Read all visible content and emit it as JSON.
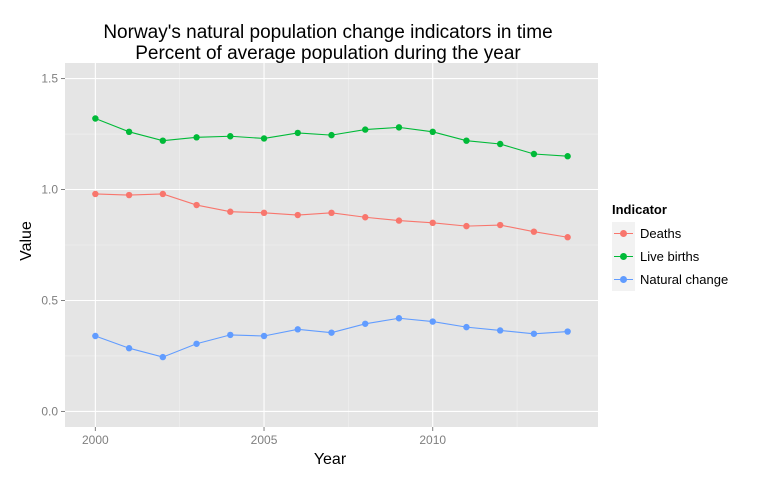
{
  "chart_data": {
    "type": "line",
    "title": "Norway's natural population change indicators in time",
    "subtitle": "Percent of average population during the year",
    "xlabel": "Year",
    "ylabel": "Value",
    "x": [
      2000,
      2001,
      2002,
      2003,
      2004,
      2005,
      2006,
      2007,
      2008,
      2009,
      2010,
      2011,
      2012,
      2013,
      2014
    ],
    "xlim": [
      1999.1,
      2014.9
    ],
    "ylim": [
      -0.07,
      1.57
    ],
    "xticks": [
      2000,
      2005,
      2010
    ],
    "yticks": [
      0.0,
      0.5,
      1.0,
      1.5
    ],
    "ytick_labels": [
      "0.0",
      "0.5",
      "1.0",
      "1.5"
    ],
    "grid": true,
    "legend": {
      "title": "Indicator",
      "position": "right"
    },
    "series": [
      {
        "name": "Deaths",
        "color": "#F8766D",
        "values": [
          0.98,
          0.975,
          0.98,
          0.93,
          0.9,
          0.895,
          0.885,
          0.895,
          0.875,
          0.86,
          0.85,
          0.835,
          0.84,
          0.81,
          0.785
        ]
      },
      {
        "name": "Live births",
        "color": "#00BA38",
        "values": [
          1.32,
          1.26,
          1.22,
          1.235,
          1.24,
          1.23,
          1.255,
          1.245,
          1.27,
          1.28,
          1.26,
          1.22,
          1.205,
          1.16,
          1.15
        ]
      },
      {
        "name": "Natural change",
        "color": "#619CFF",
        "values": [
          0.34,
          0.285,
          0.245,
          0.305,
          0.345,
          0.34,
          0.37,
          0.355,
          0.395,
          0.42,
          0.405,
          0.38,
          0.365,
          0.35,
          0.36
        ]
      }
    ]
  }
}
